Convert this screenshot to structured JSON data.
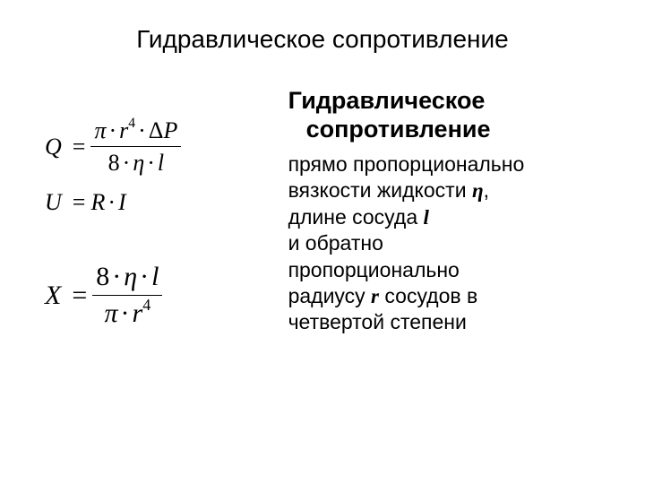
{
  "main_title": "Гидравлическое сопротивление",
  "sub_title_line1": "Гидравлическое",
  "sub_title_line2": "сопротивление",
  "body": {
    "line1": "прямо пропорционально",
    "line2_a": "вязкости жидкости ",
    "line2_var": "η",
    "line2_b": ",",
    "line3_a": "длине сосуда ",
    "line3_var": "l",
    "line4": "и обратно",
    "line5": "пропорционально",
    "line6_a": "радиусу ",
    "line6_var": "r",
    "line6_b": " сосудов в",
    "line7": "четвертой степени"
  },
  "formulas": {
    "Q": {
      "lhs": "Q",
      "num_pi": "π",
      "num_r": "r",
      "num_r_exp": "4",
      "num_dP": "ΔP",
      "den_8": "8",
      "den_eta": "η",
      "den_l": "l"
    },
    "U": {
      "lhs": "U",
      "R": "R",
      "I": "I"
    },
    "X": {
      "lhs": "X",
      "num_8": "8",
      "num_eta": "η",
      "num_l": "l",
      "den_pi": "π",
      "den_r": "r",
      "den_r_exp": "4"
    }
  },
  "style": {
    "text_color": "#000000",
    "background": "#ffffff",
    "title_fontsize": 28,
    "subtitle_fontsize": 27,
    "body_fontsize": 23,
    "formula_fontsize": 26,
    "formula_big_fontsize": 30
  }
}
